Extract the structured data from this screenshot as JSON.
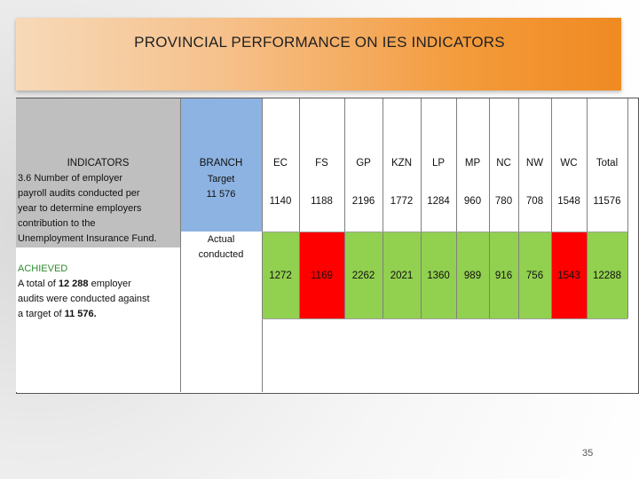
{
  "title": "PROVINCIAL PERFORMANCE ON IES INDICATORS",
  "indicators": {
    "header": "INDICATORS",
    "description_lines": [
      "3.6 Number of employer",
      "payroll audits conducted per",
      "year to determine employers",
      "contribution to the",
      "Unemployment Insurance Fund."
    ],
    "achieved_label": "ACHIEVED",
    "achieved_lines_1": "A total of ",
    "achieved_total": "12 288",
    "achieved_lines_2": " employer",
    "achieved_line_3": "audits were conducted against",
    "achieved_line_4_prefix": "a target of ",
    "achieved_target": "11 576."
  },
  "branch": {
    "header": "BRANCH",
    "target_label": "Target",
    "target_value": "11 576",
    "actual_label_1": "Actual",
    "actual_label_2": "conducted"
  },
  "provinces": [
    "EC",
    "FS",
    "GP",
    "KZN",
    "LP",
    "MP",
    "NC",
    "NW",
    "WC",
    "Total"
  ],
  "targets": [
    "1140",
    "1188",
    "2196",
    "1772",
    "1284",
    "960",
    "780",
    "708",
    "1548",
    "11576"
  ],
  "actuals": [
    "1272",
    "1169",
    "2262",
    "2021",
    "1360",
    "989",
    "916",
    "756",
    "1543",
    "12288"
  ],
  "colors": {
    "met": "#92d050",
    "not_met": "#ff0000",
    "branch": "#8db3e2",
    "title_bar": "#f39a3a"
  },
  "page_number": "35"
}
